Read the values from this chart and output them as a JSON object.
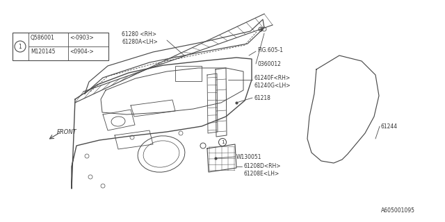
{
  "background_color": "#ffffff",
  "line_color": "#4a4a4a",
  "text_color": "#333333",
  "title_code": "A605001095",
  "fig_ref": "FIG.605-1",
  "part_numbers": {
    "61280_RH": "61280 <RH>",
    "61280A_LH": "61280A<LH>",
    "0360012": "0360012",
    "61240F_RH": "61240F<RH>",
    "61240G_LH": "61240G<LH>",
    "61218": "61218",
    "W130051": "W130051",
    "61208D_RH": "61208D<RH>",
    "61208E_LH": "61208E<LH>",
    "61244": "61244"
  },
  "bom_table": {
    "row1_part": "Q586001",
    "row1_note": "<-0903>",
    "row2_part": "M120145",
    "row2_note": "<0904->"
  },
  "front_label": "FRONT"
}
